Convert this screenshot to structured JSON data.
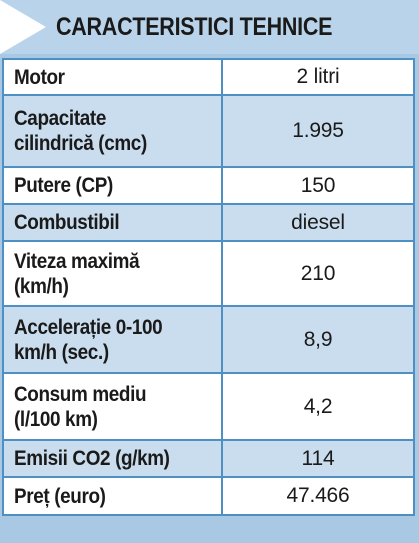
{
  "header": {
    "title": "CARACTERISTICI TEHNICE"
  },
  "specs": [
    {
      "label_lines": [
        "Motor"
      ],
      "value": "2 litri"
    },
    {
      "label_lines": [
        "Capacitate",
        "cilindrică (cmc)"
      ],
      "value": "1.995"
    },
    {
      "label_lines": [
        "Putere (CP)"
      ],
      "value": "150"
    },
    {
      "label_lines": [
        "Combustibil"
      ],
      "value": "diesel"
    },
    {
      "label_lines": [
        "Viteza maximă",
        "(km/h)"
      ],
      "value": "210"
    },
    {
      "label_lines": [
        "Accelerație 0-100",
        "km/h (sec.)"
      ],
      "value": "8,9"
    },
    {
      "label_lines": [
        "Consum mediu",
        "(l/100 km)"
      ],
      "value": "4,2"
    },
    {
      "label_lines": [
        "Emisii CO2 (g/km)"
      ],
      "value": "114"
    },
    {
      "label_lines": [
        "Preț (euro)"
      ],
      "value": "47.466"
    }
  ]
}
